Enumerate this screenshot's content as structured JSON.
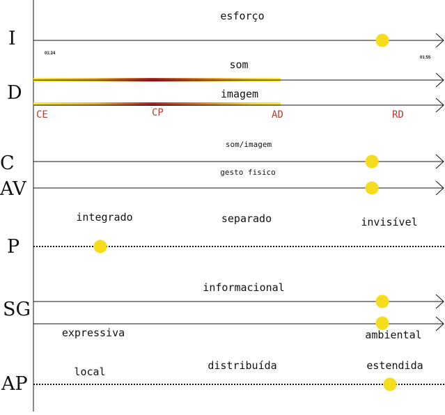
{
  "rows": {
    "I": "I",
    "D": "D",
    "C": "C",
    "AV": "AV",
    "P": "P",
    "SG": "SG",
    "AP": "AP"
  },
  "lines": {
    "esforco": "esforço",
    "time_start": "01:24",
    "time_end": "01:55",
    "som": "som",
    "imagem": "imagem",
    "som_imagem": "som/imagem",
    "gesto_fisico": "gesto fisico",
    "informacional": "informacional"
  },
  "d_scale": [
    "CE",
    "CP",
    "AD",
    "RD"
  ],
  "p_scale": [
    "integrado",
    "separado",
    "invisível"
  ],
  "sg_labels": {
    "left": "expressiva",
    "right": "ambiental"
  },
  "ap_scale": [
    "local",
    "distribuída",
    "estendida"
  ],
  "colors": {
    "marker": "#f5dd1e",
    "gradient_yellow": "#f7ea2e",
    "gradient_orange": "#e08a2a",
    "gradient_red": "#b81e24",
    "scale_text": "#c0392b",
    "line": "#111111"
  }
}
